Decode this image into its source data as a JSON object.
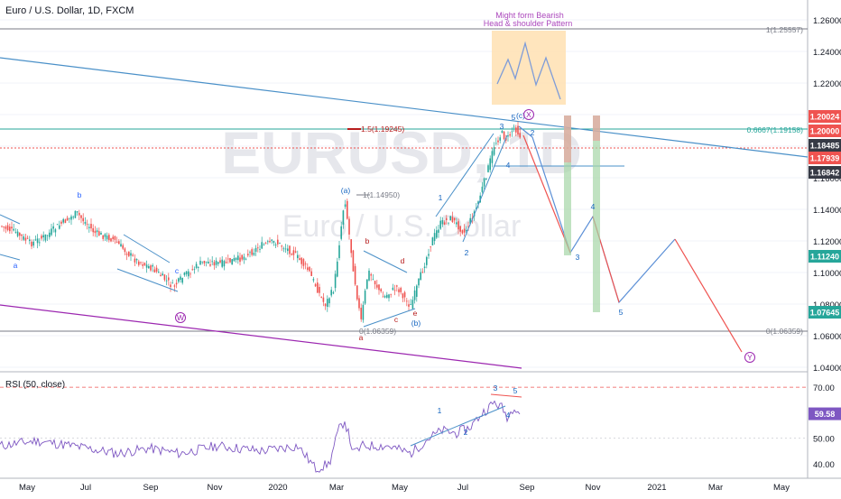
{
  "header": {
    "title": "Euro / U.S. Dollar, 1D, FXCM"
  },
  "watermark": {
    "symbol": "EURUSD, 1D",
    "name": "Euro / U.S. Dollar"
  },
  "annotation": {
    "line1": "Might form Bearish",
    "line2": "Head & shoulder Pattern"
  },
  "colors": {
    "accent_green": "#26a69a",
    "accent_red": "#ef5350",
    "trend_blue": "#4a90c8",
    "wave_purple": "#9c27b0",
    "fib_teal": "#26a69a"
  },
  "chart_data": [
    {
      "type": "line",
      "title": "Euro / U.S. Dollar, 1D, FXCM",
      "x": [
        "May",
        "Jul",
        "Sep",
        "Nov",
        "2020",
        "Mar",
        "May",
        "Jul",
        "Sep",
        "Nov",
        "2021",
        "Mar",
        "May"
      ],
      "ylim": [
        1.04,
        1.26
      ],
      "y_ticks": [
        "1.26000",
        "1.24000",
        "1.22000",
        "1.20000",
        "1.18000",
        "1.16000",
        "1.14000",
        "1.12000",
        "1.10000",
        "1.08000",
        "1.06000",
        "1.04000"
      ],
      "price_labels": [
        {
          "value": "1.20024",
          "color": "#ef5350"
        },
        {
          "value": "1.20000",
          "color": "#ef5350"
        },
        {
          "value": "1.18485",
          "color": "#363a45"
        },
        {
          "value": "1.17939",
          "color": "#ef5350"
        },
        {
          "value": "1.16842",
          "color": "#363a45"
        },
        {
          "value": "1.11240",
          "color": "#26a69a"
        },
        {
          "value": "1.07645",
          "color": "#26a69a"
        }
      ],
      "level_labels": [
        "1(1.25557)",
        "0.6667(1.19158)",
        "1.5(1.19245)",
        "1(1.14950)",
        "0(1.06359)",
        "0(1.06359)"
      ],
      "wave_labels": {
        "triangle_left": [
          "b",
          "a",
          "c",
          "ⓦ"
        ],
        "triangle_mid": [
          "(a)",
          "b",
          "d",
          "c",
          "e",
          "(b)",
          "a"
        ],
        "impulse": [
          "1",
          "2",
          "3",
          "4",
          "5",
          "(c)",
          "ⓧ"
        ],
        "projection": [
          "2",
          "3",
          "4",
          "5",
          "ⓨ"
        ]
      },
      "grid": true,
      "legend": "none"
    },
    {
      "type": "line",
      "title": "RSI (50, close)",
      "ylim": [
        35,
        75
      ],
      "y_ticks": [
        "70.00",
        "60.00",
        "50.00",
        "40.00"
      ],
      "current": "59.58",
      "wave_labels": [
        "1",
        "2",
        "3",
        "4",
        "5"
      ]
    }
  ]
}
